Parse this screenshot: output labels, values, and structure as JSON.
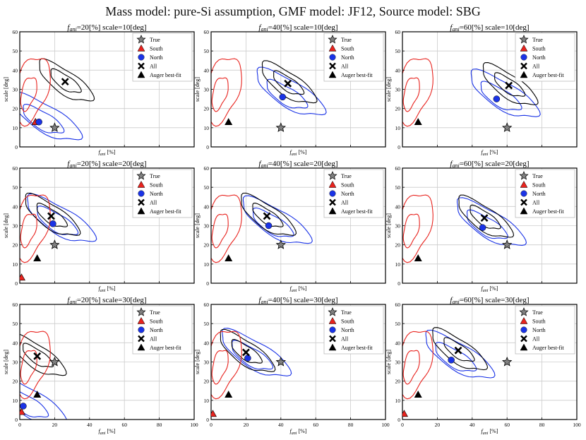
{
  "figure_title": "Mass model: pure-Si assumption, GMF model: JF12, Source model: SBG",
  "colors": {
    "true": "#808080",
    "south": "#e8231e",
    "north": "#1a33e6",
    "all": "#000000",
    "auger": "#000000",
    "grid": "#cccccc"
  },
  "legend": [
    "True",
    "South",
    "North",
    "All",
    "Auger best-fit"
  ],
  "ylabel": "scale [deg]",
  "xlabel": "fani [%]",
  "x_ticks": [
    "0",
    "20",
    "40",
    "60",
    "80",
    "100"
  ],
  "y_ticks": [
    "0",
    "10",
    "20",
    "30",
    "40",
    "50",
    "60"
  ],
  "chart_data": [
    {
      "type": "scatter",
      "title": "fani=20[%] scale=10[deg]",
      "fani": "20",
      "scale": "10",
      "xlim": [
        0,
        100
      ],
      "ylim": [
        0,
        60
      ],
      "legend_position": "top-right",
      "grid": true,
      "points": {
        "True": [
          20,
          10
        ],
        "South": [
          9,
          13
        ],
        "North": [
          11,
          13
        ],
        "All": [
          26,
          34
        ],
        "Auger best-fit": [
          9,
          13
        ]
      }
    },
    {
      "type": "scatter",
      "title": "fani=40[%] scale=10[deg]",
      "fani": "40",
      "scale": "10",
      "xlim": [
        0,
        100
      ],
      "ylim": [
        0,
        60
      ],
      "legend_position": "top-right",
      "grid": true,
      "points": {
        "True": [
          40,
          10
        ],
        "South": null,
        "North": [
          41,
          26
        ],
        "All": [
          44,
          33
        ],
        "Auger best-fit": [
          10,
          13
        ]
      }
    },
    {
      "type": "scatter",
      "title": "fani=60[%] scale=10[deg]",
      "fani": "60",
      "scale": "10",
      "xlim": [
        0,
        100
      ],
      "ylim": [
        0,
        60
      ],
      "legend_position": "top-right",
      "grid": true,
      "points": {
        "True": [
          60,
          10
        ],
        "South": null,
        "North": [
          54,
          25
        ],
        "All": [
          61,
          32
        ],
        "Auger best-fit": [
          9,
          13
        ]
      }
    },
    {
      "type": "scatter",
      "title": "fani=20[%] scale=20[deg]",
      "fani": "20",
      "scale": "20",
      "xlim": [
        0,
        100
      ],
      "ylim": [
        0,
        60
      ],
      "legend_position": "top-right",
      "grid": true,
      "points": {
        "True": [
          20,
          20
        ],
        "South": [
          1,
          3
        ],
        "North": [
          19,
          31
        ],
        "All": [
          18,
          35
        ],
        "Auger best-fit": [
          10,
          13
        ]
      }
    },
    {
      "type": "scatter",
      "title": "fani=40[%] scale=20[deg]",
      "fani": "40",
      "scale": "20",
      "xlim": [
        0,
        100
      ],
      "ylim": [
        0,
        60
      ],
      "legend_position": "top-right",
      "grid": true,
      "points": {
        "True": [
          40,
          20
        ],
        "South": null,
        "North": [
          33,
          30
        ],
        "All": [
          32,
          35
        ],
        "Auger best-fit": [
          10,
          13
        ]
      }
    },
    {
      "type": "scatter",
      "title": "fani=60[%] scale=20[deg]",
      "fani": "60",
      "scale": "20",
      "xlim": [
        0,
        100
      ],
      "ylim": [
        0,
        60
      ],
      "legend_position": "top-right",
      "grid": true,
      "points": {
        "True": [
          60,
          20
        ],
        "South": null,
        "North": [
          46,
          29
        ],
        "All": [
          47,
          34
        ],
        "Auger best-fit": [
          9,
          13
        ]
      }
    },
    {
      "type": "scatter",
      "title": "fani=20[%] scale=30[deg]",
      "fani": "20",
      "scale": "30",
      "xlim": [
        0,
        100
      ],
      "ylim": [
        0,
        60
      ],
      "legend_position": "top-right",
      "grid": true,
      "points": {
        "True": [
          20,
          30
        ],
        "South": [
          1,
          4
        ],
        "North": [
          2,
          7
        ],
        "All": [
          10,
          33
        ],
        "Auger best-fit": [
          10,
          13
        ]
      }
    },
    {
      "type": "scatter",
      "title": "fani=40[%] scale=30[deg]",
      "fani": "40",
      "scale": "30",
      "xlim": [
        0,
        100
      ],
      "ylim": [
        0,
        60
      ],
      "legend_position": "top-right",
      "grid": true,
      "points": {
        "True": [
          40,
          30
        ],
        "South": [
          1,
          3
        ],
        "North": [
          21,
          32
        ],
        "All": [
          20,
          35
        ],
        "Auger best-fit": [
          10,
          13
        ]
      }
    },
    {
      "type": "scatter",
      "title": "fani=60[%] scale=30[deg]",
      "fani": "60",
      "scale": "30",
      "xlim": [
        0,
        100
      ],
      "ylim": [
        0,
        60
      ],
      "legend_position": "top-right",
      "grid": true,
      "points": {
        "True": [
          60,
          30
        ],
        "South": [
          1,
          3
        ],
        "North": [
          28,
          31
        ],
        "All": [
          32,
          36
        ],
        "Auger best-fit": [
          9,
          13
        ]
      }
    }
  ]
}
